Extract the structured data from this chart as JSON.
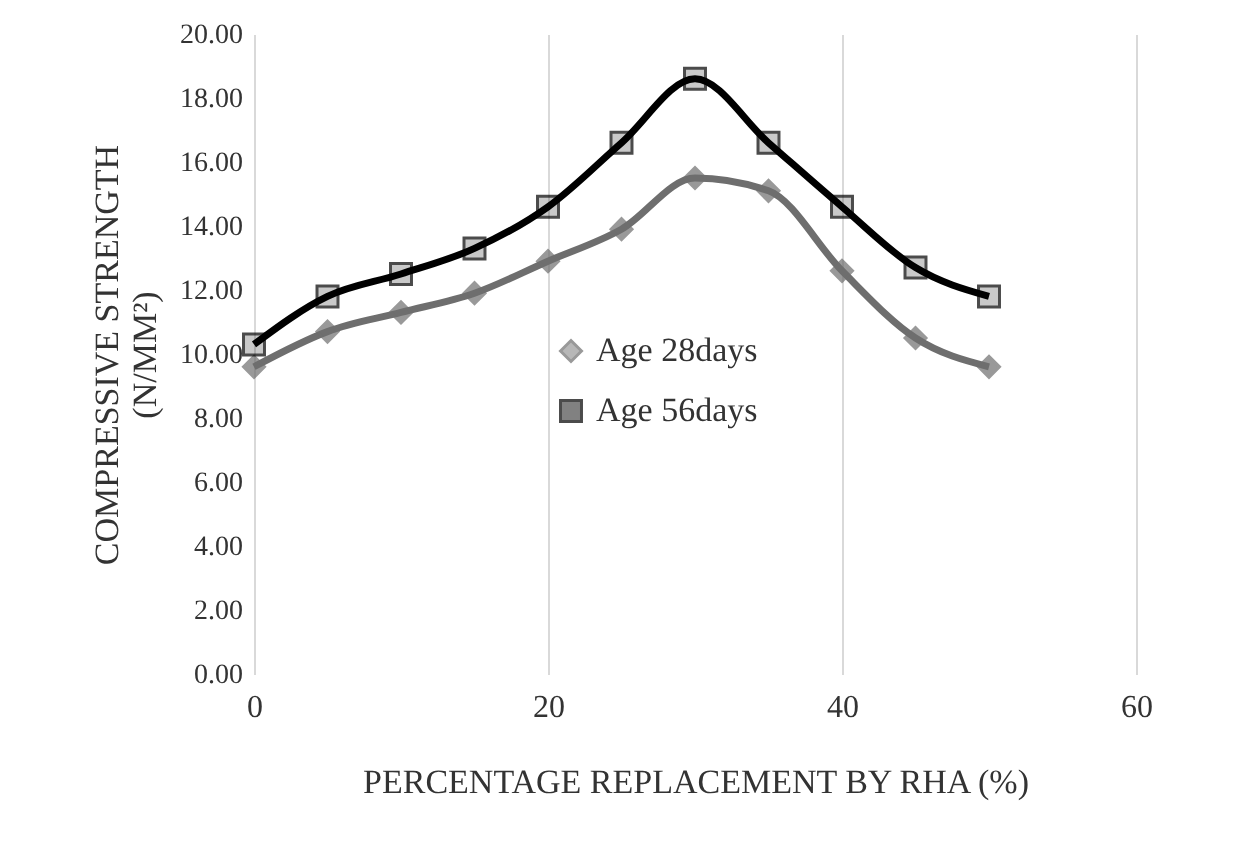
{
  "chart_data": {
    "type": "line",
    "xlabel": "PERCENTAGE REPLACEMENT BY RHA (%)",
    "ylabel": "COMPRESSIVE STRENGTH\n(N/MM²)",
    "x": [
      0,
      5,
      10,
      15,
      20,
      25,
      30,
      35,
      40,
      45,
      50
    ],
    "series": [
      {
        "name": "Age 28days",
        "color": "#6e6e6e",
        "marker": "diamond",
        "values": [
          9.6,
          10.7,
          11.3,
          11.9,
          12.9,
          13.9,
          15.5,
          15.1,
          12.6,
          10.5,
          9.6
        ]
      },
      {
        "name": "Age 56days",
        "color": "#000000",
        "marker": "square",
        "values": [
          10.3,
          11.8,
          12.5,
          13.3,
          14.6,
          16.6,
          18.6,
          16.6,
          14.6,
          12.7,
          11.8
        ]
      }
    ],
    "xlim": [
      0,
      60
    ],
    "xticks": [
      0,
      20,
      40,
      60
    ],
    "ylim": [
      0,
      20
    ],
    "yticks": [
      {
        "value": 0,
        "label": "0.00"
      },
      {
        "value": 2,
        "label": "2.00"
      },
      {
        "value": 4,
        "label": "4.00"
      },
      {
        "value": 6,
        "label": "6.00"
      },
      {
        "value": 8,
        "label": "8.00"
      },
      {
        "value": 10,
        "label": "10.00"
      },
      {
        "value": 12,
        "label": "12.00"
      },
      {
        "value": 14,
        "label": "14.00"
      },
      {
        "value": 16,
        "label": "16.00"
      },
      {
        "value": 18,
        "label": "18.00"
      },
      {
        "value": 20,
        "label": "20.00"
      }
    ],
    "grid": "x",
    "legend": "center",
    "line_style": "solid"
  }
}
